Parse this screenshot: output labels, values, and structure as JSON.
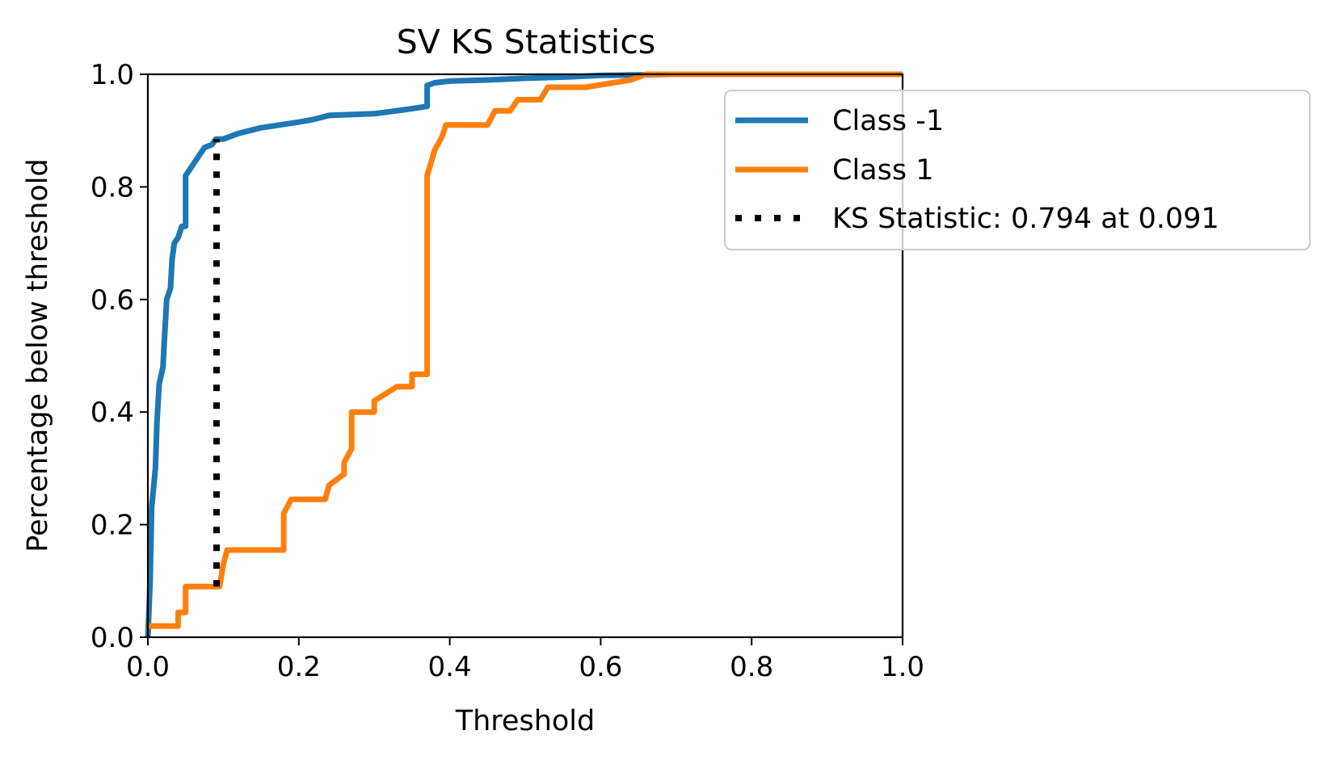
{
  "chart_data": {
    "type": "line",
    "title": "SV KS Statistics",
    "xlabel": "Threshold",
    "ylabel": "Percentage below threshold",
    "xlim": [
      0.0,
      1.0
    ],
    "ylim": [
      0.0,
      1.0
    ],
    "xticks": [
      "0.0",
      "0.2",
      "0.4",
      "0.6",
      "0.8",
      "1.0"
    ],
    "yticks": [
      "0.0",
      "0.2",
      "0.4",
      "0.6",
      "0.8",
      "1.0"
    ],
    "grid": false,
    "legend_placement": "upper-right, extending outside the plot",
    "series": [
      {
        "name": "Class -1",
        "color": "#1f77b4",
        "points": [
          [
            0.0,
            0.0
          ],
          [
            0.003,
            0.1
          ],
          [
            0.005,
            0.23
          ],
          [
            0.01,
            0.3
          ],
          [
            0.012,
            0.38
          ],
          [
            0.015,
            0.45
          ],
          [
            0.02,
            0.48
          ],
          [
            0.022,
            0.53
          ],
          [
            0.025,
            0.6
          ],
          [
            0.03,
            0.62
          ],
          [
            0.032,
            0.67
          ],
          [
            0.035,
            0.7
          ],
          [
            0.04,
            0.71
          ],
          [
            0.045,
            0.73
          ],
          [
            0.05,
            0.73
          ],
          [
            0.05,
            0.82
          ],
          [
            0.055,
            0.83
          ],
          [
            0.06,
            0.84
          ],
          [
            0.065,
            0.85
          ],
          [
            0.07,
            0.86
          ],
          [
            0.075,
            0.87
          ],
          [
            0.085,
            0.875
          ],
          [
            0.09,
            0.885
          ],
          [
            0.1,
            0.885
          ],
          [
            0.12,
            0.895
          ],
          [
            0.15,
            0.905
          ],
          [
            0.2,
            0.915
          ],
          [
            0.22,
            0.92
          ],
          [
            0.24,
            0.927
          ],
          [
            0.3,
            0.93
          ],
          [
            0.34,
            0.937
          ],
          [
            0.37,
            0.943
          ],
          [
            0.37,
            0.98
          ],
          [
            0.38,
            0.985
          ],
          [
            0.4,
            0.988
          ],
          [
            0.45,
            0.99
          ],
          [
            0.5,
            0.993
          ],
          [
            0.55,
            0.995
          ],
          [
            0.6,
            0.998
          ],
          [
            0.7,
            1.0
          ],
          [
            1.0,
            1.0
          ]
        ]
      },
      {
        "name": "Class 1",
        "color": "#ff7f0e",
        "points": [
          [
            0.0,
            0.02
          ],
          [
            0.04,
            0.02
          ],
          [
            0.04,
            0.044
          ],
          [
            0.05,
            0.044
          ],
          [
            0.05,
            0.09
          ],
          [
            0.095,
            0.09
          ],
          [
            0.1,
            0.13
          ],
          [
            0.105,
            0.155
          ],
          [
            0.18,
            0.155
          ],
          [
            0.18,
            0.22
          ],
          [
            0.19,
            0.245
          ],
          [
            0.235,
            0.245
          ],
          [
            0.24,
            0.27
          ],
          [
            0.26,
            0.29
          ],
          [
            0.26,
            0.31
          ],
          [
            0.27,
            0.335
          ],
          [
            0.27,
            0.4
          ],
          [
            0.3,
            0.4
          ],
          [
            0.3,
            0.42
          ],
          [
            0.33,
            0.445
          ],
          [
            0.35,
            0.445
          ],
          [
            0.35,
            0.467
          ],
          [
            0.37,
            0.467
          ],
          [
            0.37,
            0.82
          ],
          [
            0.38,
            0.865
          ],
          [
            0.39,
            0.89
          ],
          [
            0.395,
            0.91
          ],
          [
            0.45,
            0.91
          ],
          [
            0.46,
            0.935
          ],
          [
            0.48,
            0.935
          ],
          [
            0.49,
            0.955
          ],
          [
            0.52,
            0.955
          ],
          [
            0.53,
            0.977
          ],
          [
            0.58,
            0.977
          ],
          [
            0.64,
            0.99
          ],
          [
            0.66,
            1.0
          ],
          [
            1.0,
            1.0
          ]
        ]
      }
    ],
    "ks_line": {
      "name": "KS Statistic: 0.794 at 0.091",
      "color": "#000000",
      "x": 0.091,
      "y_range": [
        0.09,
        0.885
      ],
      "style": "dotted"
    }
  }
}
